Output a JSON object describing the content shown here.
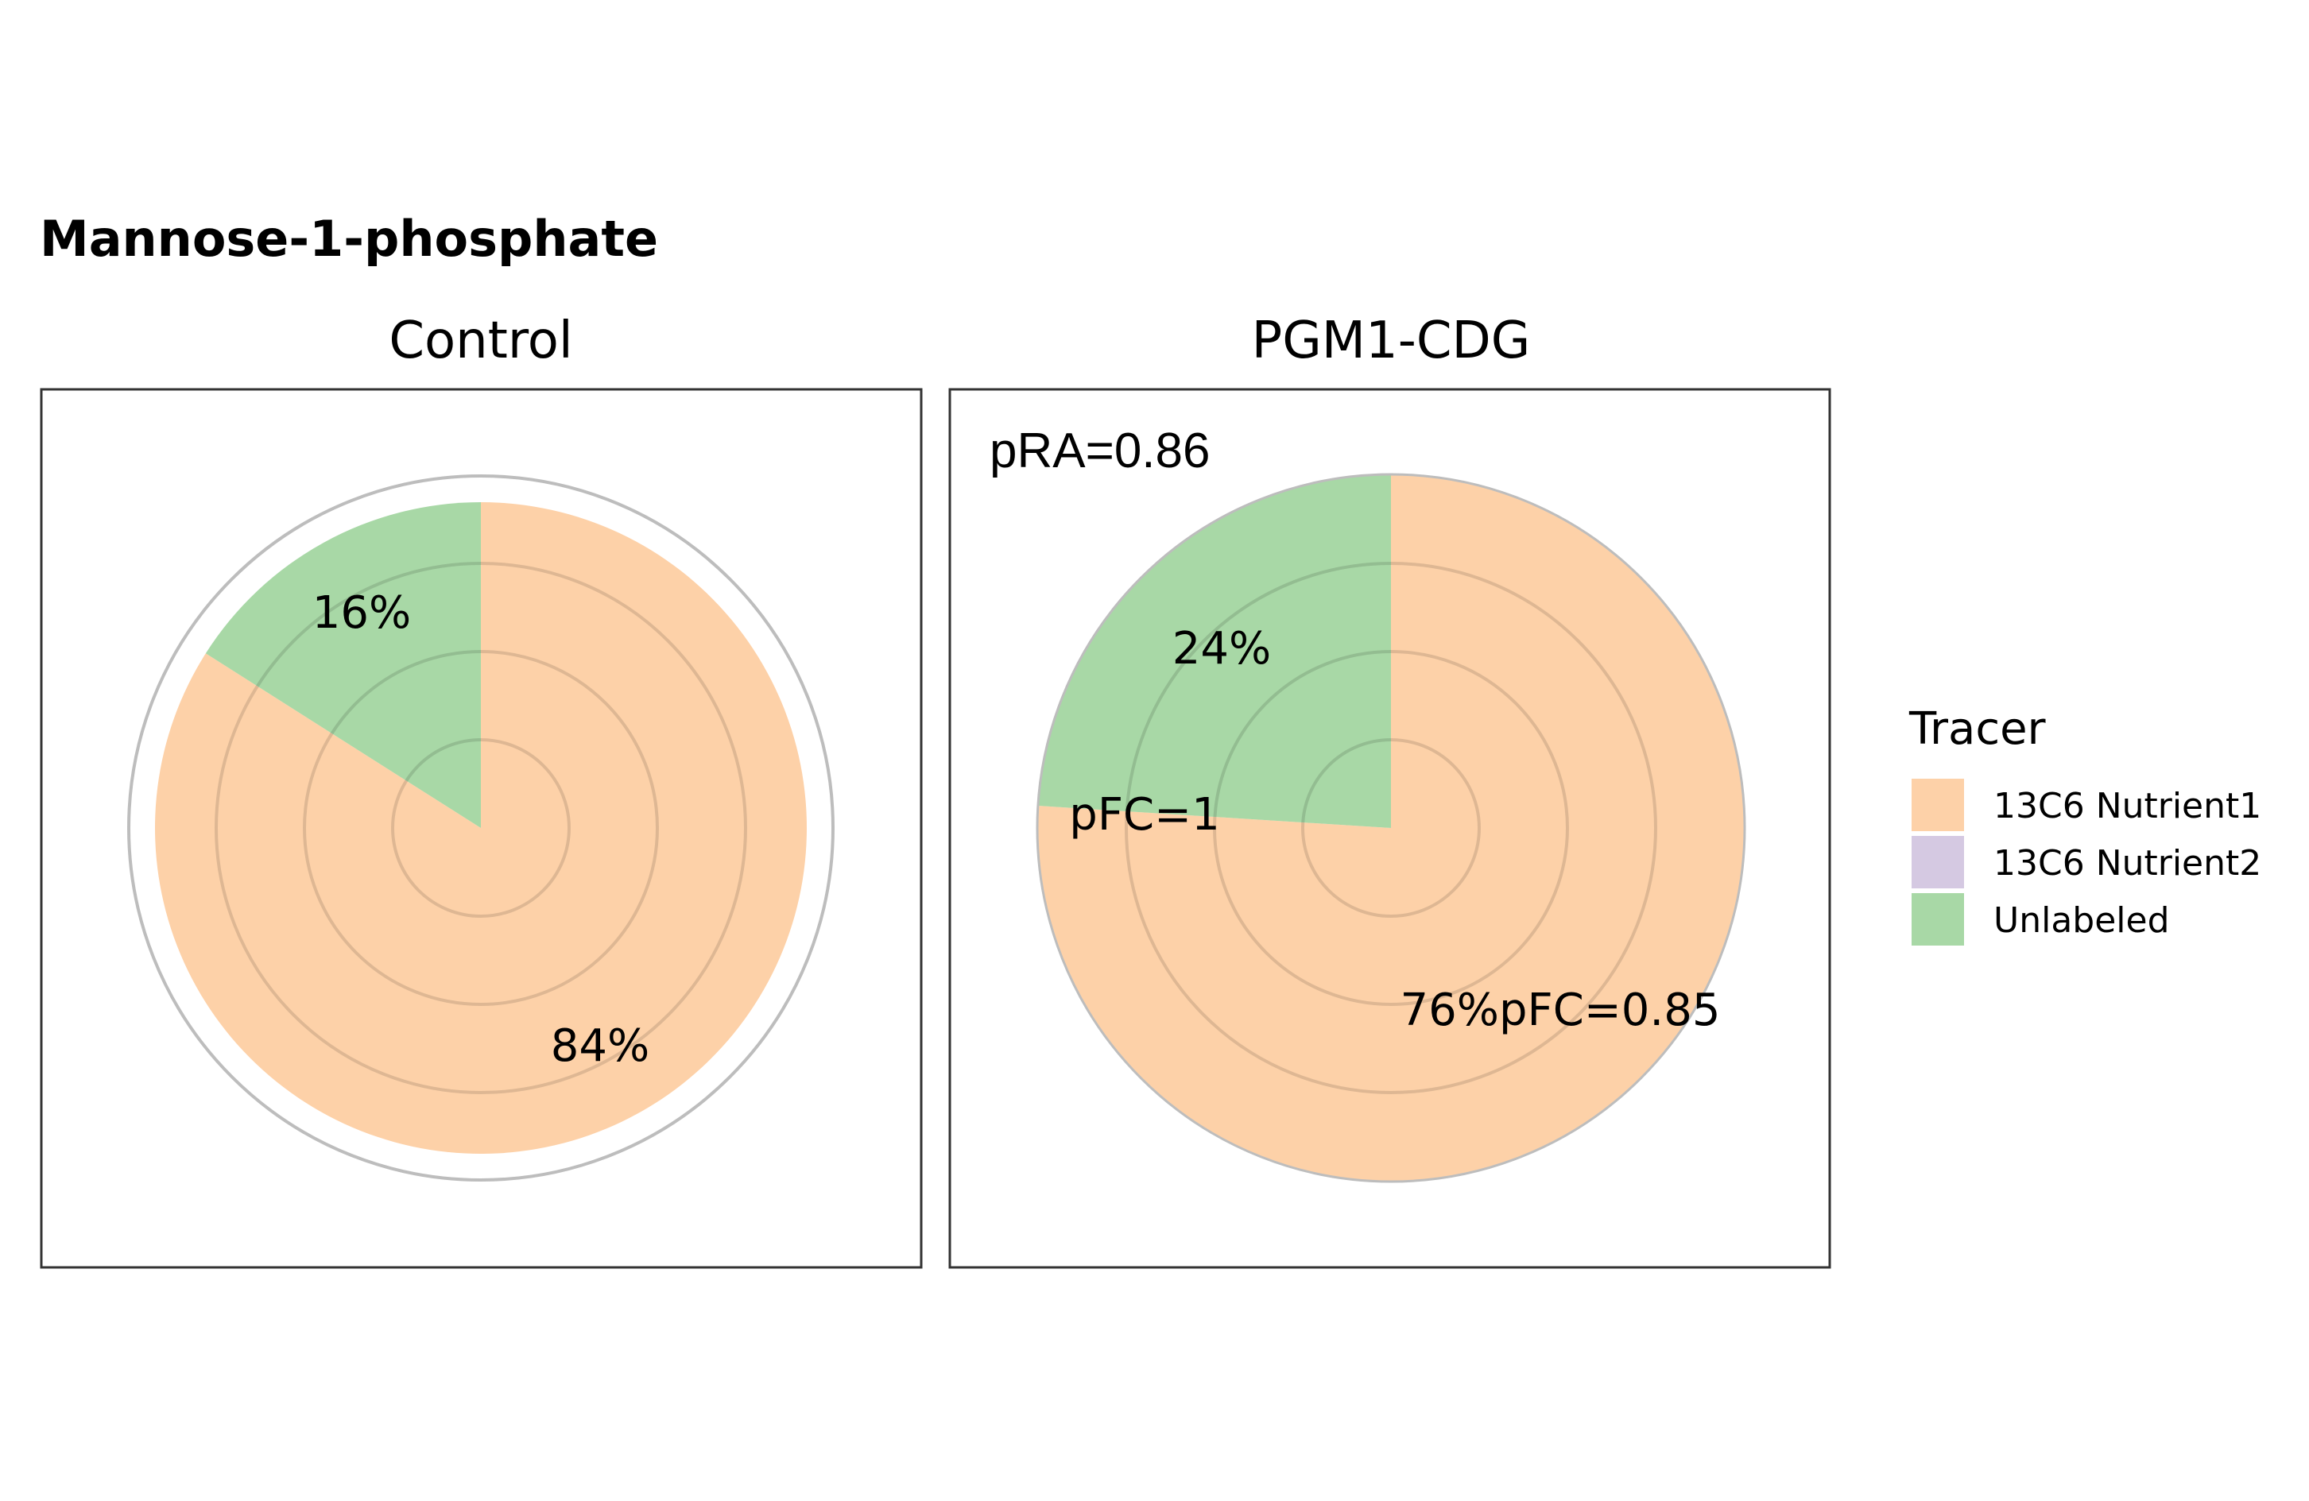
{
  "chart_data": {
    "type": "pie",
    "title": "Mannose-1-phosphate",
    "facets": [
      {
        "name": "Control",
        "slices": [
          {
            "tracer": "13C6 Nutrient1",
            "value": 84,
            "label": "84%"
          },
          {
            "tracer": "Unlabeled",
            "value": 16,
            "label": "16%"
          }
        ],
        "annotations": []
      },
      {
        "name": "PGM1-CDG",
        "slices": [
          {
            "tracer": "13C6 Nutrient1",
            "value": 76,
            "label": "76%pFC=0.85"
          },
          {
            "tracer": "Unlabeled",
            "value": 24,
            "label": "24%"
          }
        ],
        "annotations": [
          "pRA=0.86",
          "pFC=1"
        ]
      }
    ],
    "legend": {
      "title": "Tracer",
      "position": "right",
      "entries": [
        {
          "label": "13C6 Nutrient1",
          "color": "#fdd1a8"
        },
        {
          "label": "13C6 Nutrient2",
          "color": "#d5c9e2"
        },
        {
          "label": "Unlabeled",
          "color": "#a8d8a6"
        }
      ]
    },
    "colors": {
      "13C6 Nutrient1": "#fdd1a8",
      "13C6 Nutrient2": "#d5c9e2",
      "Unlabeled": "#a8d8a6"
    }
  }
}
